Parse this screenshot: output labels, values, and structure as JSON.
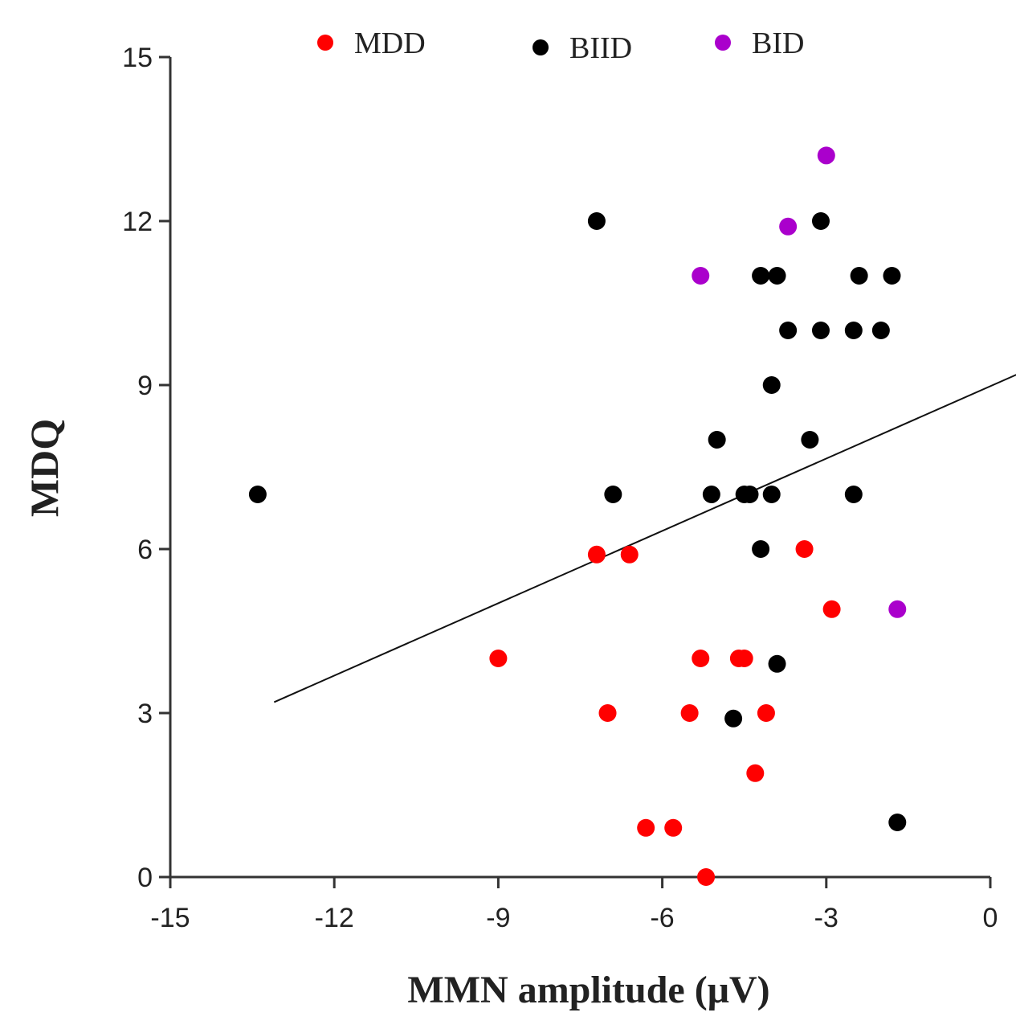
{
  "chart_data": {
    "type": "scatter",
    "title": "",
    "xlabel": "MMN amplitude (μV)",
    "ylabel": "MDQ",
    "xlim": [
      -15,
      0
    ],
    "ylim": [
      0,
      15
    ],
    "xticks": [
      -15,
      -12,
      -9,
      -6,
      -3,
      0
    ],
    "yticks": [
      0,
      3,
      6,
      9,
      12,
      15
    ],
    "xtick_labels": [
      "-15",
      "-12",
      "-9",
      "-6",
      "-3",
      "0"
    ],
    "ytick_labels": [
      "0",
      "3",
      "6",
      "9",
      "12",
      "15"
    ],
    "grid": false,
    "legend_position": "top",
    "series": [
      {
        "name": "MDD",
        "color": "#ff0000",
        "points": [
          [
            -7.2,
            5.9
          ],
          [
            -6.6,
            5.9
          ],
          [
            -3.4,
            6.0
          ],
          [
            -2.9,
            4.9
          ],
          [
            -9.0,
            4.0
          ],
          [
            -5.3,
            4.0
          ],
          [
            -4.6,
            4.0
          ],
          [
            -4.5,
            4.0
          ],
          [
            -7.0,
            3.0
          ],
          [
            -5.5,
            3.0
          ],
          [
            -4.1,
            3.0
          ],
          [
            -4.3,
            1.9
          ],
          [
            -6.3,
            0.9
          ],
          [
            -5.8,
            0.9
          ],
          [
            -5.2,
            0.0
          ]
        ]
      },
      {
        "name": "BIID",
        "color": "#000000",
        "points": [
          [
            -7.2,
            12.0
          ],
          [
            -3.1,
            12.0
          ],
          [
            -4.2,
            11.0
          ],
          [
            -3.9,
            11.0
          ],
          [
            -2.4,
            11.0
          ],
          [
            -1.8,
            11.0
          ],
          [
            -3.7,
            10.0
          ],
          [
            -3.1,
            10.0
          ],
          [
            -2.5,
            10.0
          ],
          [
            -2.0,
            10.0
          ],
          [
            -4.0,
            9.0
          ],
          [
            -5.0,
            8.0
          ],
          [
            -3.3,
            8.0
          ],
          [
            -13.4,
            7.0
          ],
          [
            -6.9,
            7.0
          ],
          [
            -5.1,
            7.0
          ],
          [
            -4.5,
            7.0
          ],
          [
            -4.4,
            7.0
          ],
          [
            -4.0,
            7.0
          ],
          [
            -2.5,
            7.0
          ],
          [
            -4.2,
            6.0
          ],
          [
            -3.9,
            3.9
          ],
          [
            -4.7,
            2.9
          ],
          [
            -1.7,
            1.0
          ]
        ]
      },
      {
        "name": "BID",
        "color": "#aa00cc",
        "points": [
          [
            -3.0,
            13.2
          ],
          [
            -3.7,
            11.9
          ],
          [
            -5.3,
            11.0
          ],
          [
            -1.7,
            4.9
          ]
        ]
      }
    ],
    "regression_line": {
      "x": [
        -13.1,
        0.5
      ],
      "y": [
        3.2,
        9.2
      ],
      "color": "#111111"
    }
  }
}
